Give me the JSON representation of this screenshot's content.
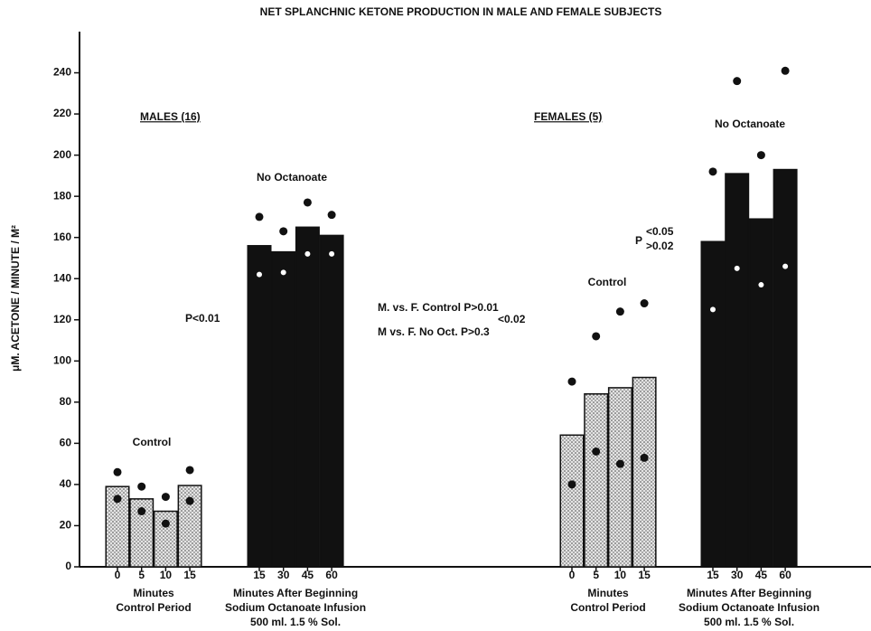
{
  "chart_data": {
    "type": "bar",
    "title": "NET SPLANCHNIC KETONE PRODUCTION IN MALE AND FEMALE SUBJECTS",
    "ylabel": "μM. ACETONE / MINUTE / M²",
    "ylim": [
      0,
      260
    ],
    "yticks": [
      0,
      20,
      40,
      60,
      80,
      100,
      120,
      140,
      160,
      180,
      200,
      220,
      240
    ],
    "groups": [
      {
        "pattern": "stippled",
        "color": "#111111",
        "categories": [
          "0",
          "5",
          "10",
          "15"
        ],
        "values": [
          39,
          33,
          27,
          39.5
        ],
        "upper": [
          46,
          39,
          34,
          47
        ],
        "lower": [
          33,
          27,
          21,
          32
        ],
        "label_lines": [
          "Minutes",
          "Control Period"
        ]
      },
      {
        "pattern": "solid",
        "color": "#111111",
        "categories": [
          "15",
          "30",
          "45",
          "60"
        ],
        "values": [
          156,
          153,
          165,
          161
        ],
        "upper": [
          170,
          163,
          177,
          171
        ],
        "lower": [
          142,
          143,
          152,
          152
        ],
        "label_lines": [
          "Minutes After Beginning",
          "Sodium Octanoate Infusion",
          "500 ml. 1.5 % Sol."
        ]
      },
      {
        "pattern": "stippled",
        "color": "#111111",
        "categories": [
          "0",
          "5",
          "10",
          "15"
        ],
        "values": [
          64,
          84,
          87,
          92
        ],
        "upper": [
          90,
          112,
          124,
          128
        ],
        "lower": [
          40,
          56,
          50,
          53
        ],
        "label_lines": [
          "Minutes",
          "Control Period"
        ]
      },
      {
        "pattern": "solid",
        "color": "#111111",
        "categories": [
          "15",
          "30",
          "45",
          "60"
        ],
        "values": [
          158,
          191,
          169,
          193
        ],
        "upper": [
          192,
          236,
          200,
          241
        ],
        "lower": [
          125,
          145,
          137,
          146
        ],
        "label_lines": [
          "Minutes After Beginning",
          "Sodium Octanoate Infusion",
          "500 ml. 1.5 % Sol."
        ]
      }
    ],
    "annotations": {
      "males": "MALES (16)",
      "females": "FEMALES (5)",
      "control_male": "Control",
      "control_female": "Control",
      "no_oct_male": "No Octanoate",
      "no_oct_female": "No Octanoate",
      "p_male": "P<0.01",
      "p_female": [
        "P",
        "<0.05",
        ">0.02"
      ],
      "mf_control": [
        "M. vs. F. Control P>0.01",
        "<0.02"
      ],
      "mf_no_oct": "M vs. F. No Oct. P>0.3"
    }
  }
}
